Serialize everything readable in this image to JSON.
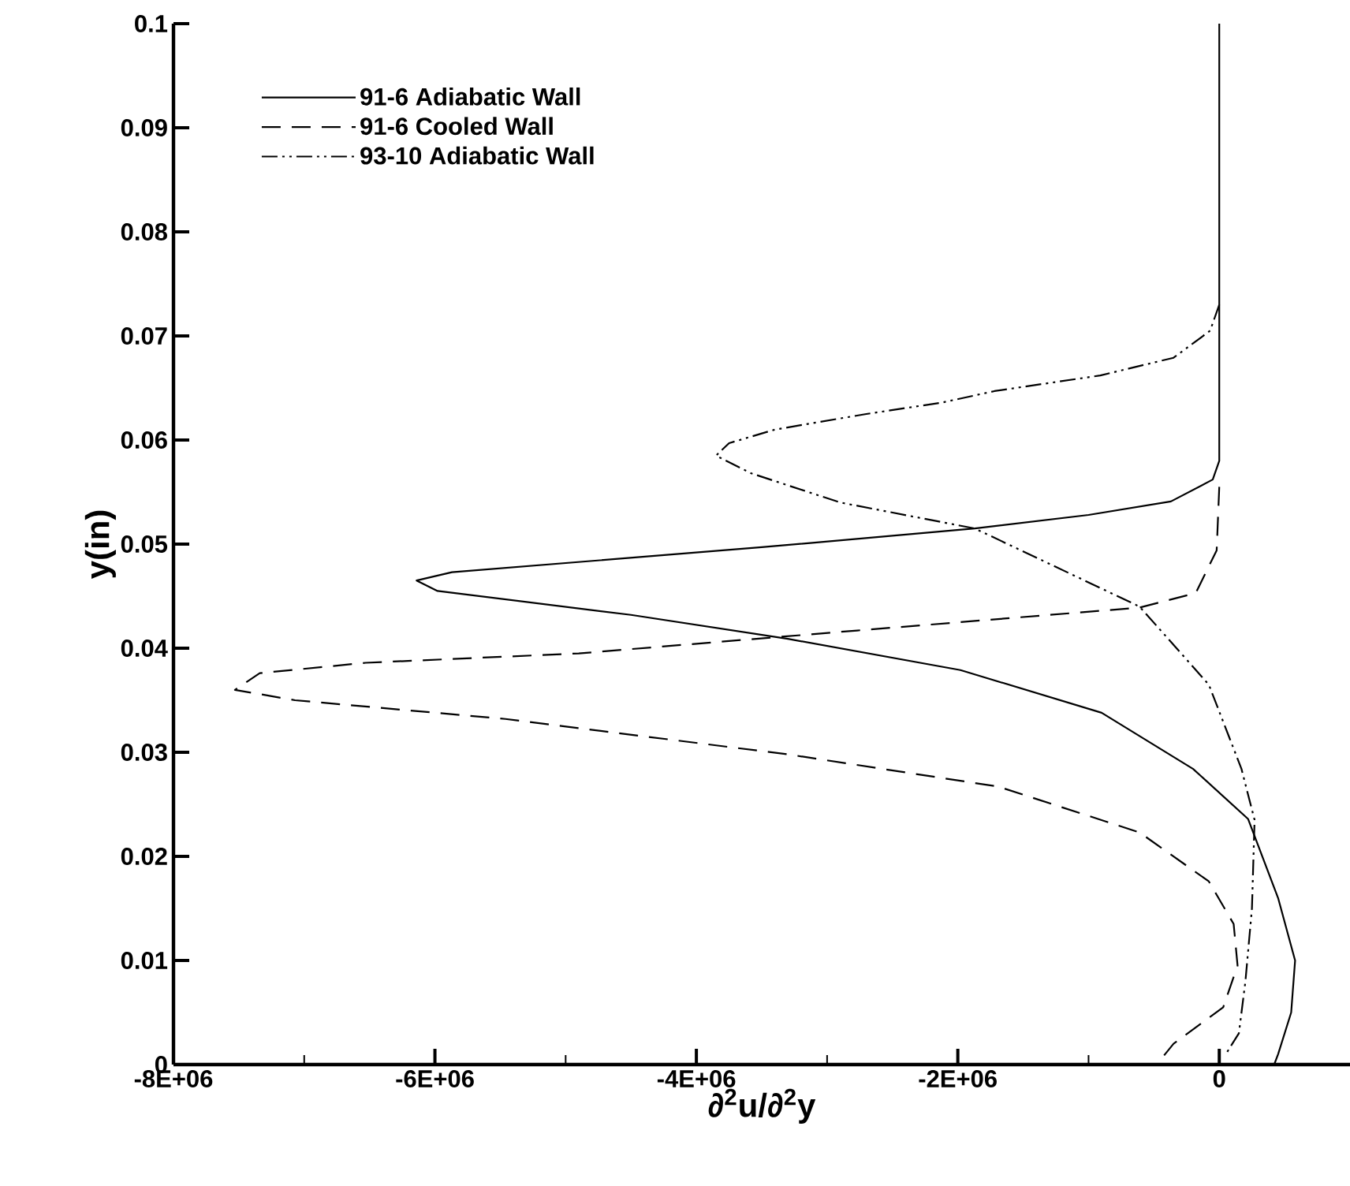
{
  "chart_data": {
    "type": "line",
    "xlabel": "∂$^{2}$u/∂$^{2}$y",
    "ylabel": "y(in)",
    "xlim": [
      -8000000,
      1000000
    ],
    "ylim": [
      0,
      0.1
    ],
    "xticks": [
      {
        "value": -8000000,
        "label": "-8E+06"
      },
      {
        "value": -7000000,
        "label": null
      },
      {
        "value": -6000000,
        "label": "-6E+06"
      },
      {
        "value": -5000000,
        "label": null
      },
      {
        "value": -4000000,
        "label": "-4E+06"
      },
      {
        "value": -3000000,
        "label": null
      },
      {
        "value": -2000000,
        "label": "-2E+06"
      },
      {
        "value": -1000000,
        "label": null
      },
      0
    ],
    "yticks": [
      0,
      0.01,
      0.02,
      0.03,
      0.04,
      0.05,
      0.06,
      0.07,
      0.08,
      0.09,
      0.1
    ],
    "legend": "top left",
    "series": [
      {
        "name": "91-6 Adiabatic Wall",
        "color": "#000000",
        "line_style": "solid",
        "x": [
          0,
          0,
          -50000,
          -370000,
          -1000000,
          -1870000,
          -3500000,
          -5870000,
          -6140000,
          -5980000,
          -4500000,
          -3300000,
          -1980000,
          -900000,
          -200000,
          220000,
          450000,
          580000,
          550000,
          450000,
          420000
        ],
        "values": [
          0.1,
          0.058,
          0.0562,
          0.0541,
          0.0528,
          0.0515,
          0.0497,
          0.0473,
          0.0465,
          0.0455,
          0.0432,
          0.0409,
          0.0379,
          0.0338,
          0.0284,
          0.0236,
          0.016,
          0.01,
          0.005,
          0.001,
          0
        ]
      },
      {
        "name": "91-6 Cooled Wall",
        "color": "#000000",
        "line_style": "dashed",
        "x": [
          0,
          -20000,
          -180000,
          -610000,
          -2770000,
          -4900000,
          -6530000,
          -7340000,
          -7530000,
          -7070000,
          -5460000,
          -3300000,
          -1690000,
          -610000,
          -80000,
          110000,
          140000,
          30000,
          -350000,
          -460000
        ],
        "values": [
          0.0555,
          0.0494,
          0.0453,
          0.0439,
          0.0417,
          0.0395,
          0.0386,
          0.0376,
          0.036,
          0.035,
          0.0332,
          0.0298,
          0.0267,
          0.0223,
          0.0176,
          0.0135,
          0.0095,
          0.0055,
          0.002,
          0.0003
        ]
      },
      {
        "name": "93-10 Adiabatic Wall",
        "color": "#000000",
        "line_style": "dashdotdotted",
        "x": [
          0,
          -70000,
          -350000,
          -910000,
          -1720000,
          -2120000,
          -2700000,
          -3400000,
          -3750000,
          -3850000,
          -3580000,
          -2900000,
          -1870000,
          -610000,
          -80000,
          170000,
          270000,
          250000,
          200000,
          150000,
          50000
        ],
        "values": [
          0.073,
          0.0705,
          0.0679,
          0.0662,
          0.0647,
          0.0636,
          0.0625,
          0.061,
          0.0597,
          0.0585,
          0.0568,
          0.054,
          0.0515,
          0.044,
          0.0365,
          0.0284,
          0.0235,
          0.015,
          0.008,
          0.003,
          0.001
        ]
      }
    ]
  }
}
